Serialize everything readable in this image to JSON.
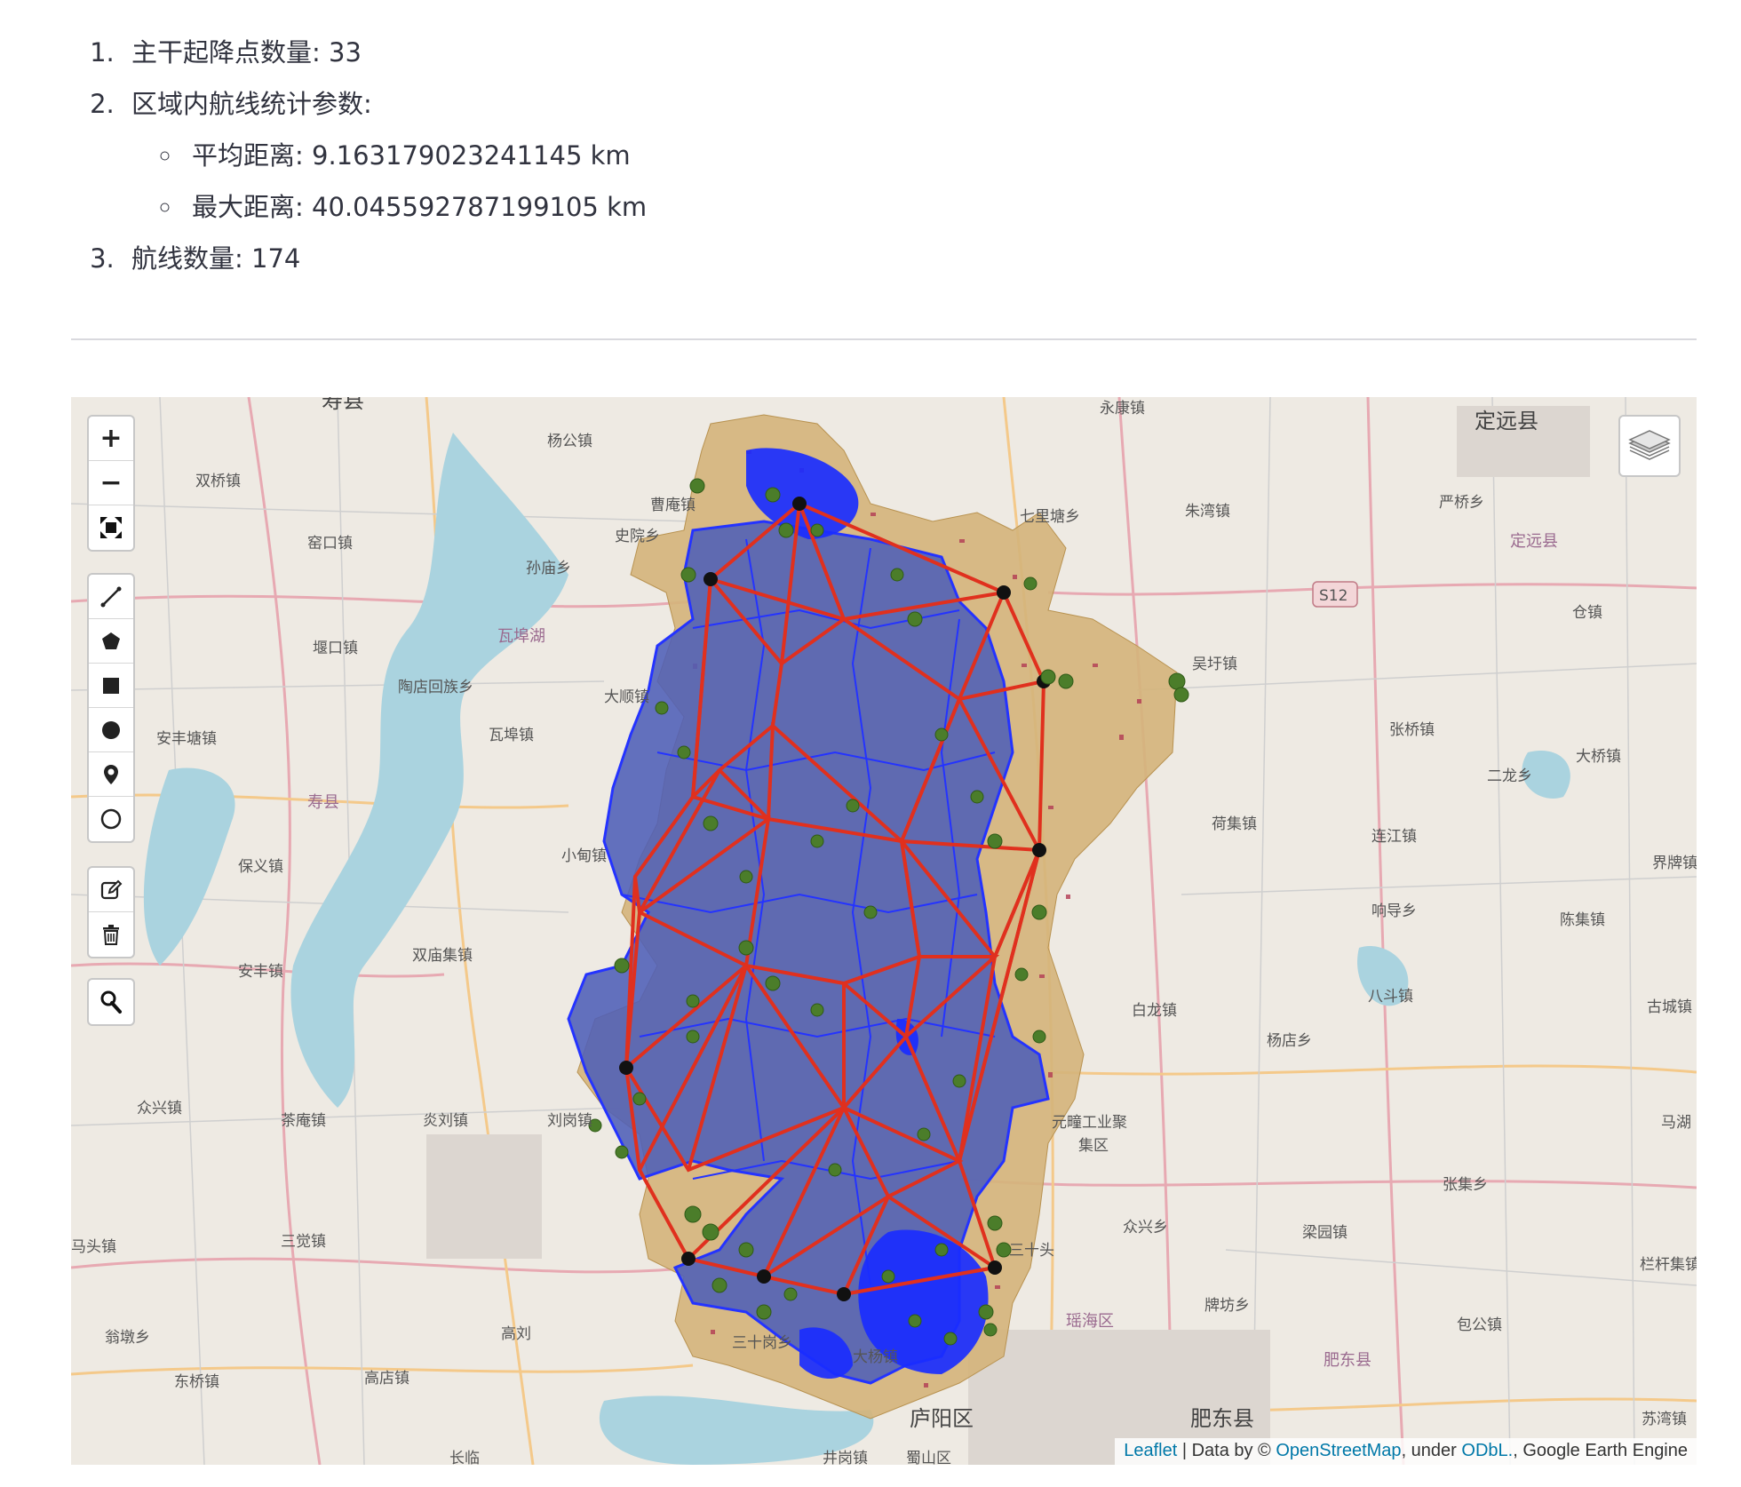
{
  "stats": {
    "item1": "主干起降点数量: 33",
    "item2": "区域内航线统计参数:",
    "avg_distance": "平均距离: 9.163179023241145 km",
    "max_distance": "最大距离: 40.045592787199105 km",
    "item3": "航线数量: 174"
  },
  "map": {
    "controls": {
      "zoom_in": "+",
      "zoom_out": "−"
    },
    "place_labels": {
      "shouxian_top": "寿县",
      "yanggong": "杨公镇",
      "yongkang": "永康镇",
      "dingyuan": "定远县",
      "shuangqiao": "双桥镇",
      "caoan": "曹庵镇",
      "qilitang": "七里塘乡",
      "zhuwan": "朱湾镇",
      "yanqiao": "严桥乡",
      "dingyuan_purple": "定远县",
      "shiyuan": "史院乡",
      "yaokou": "窑口镇",
      "sunmiao": "孙庙乡",
      "s12": "S12",
      "cangzhen": "仓镇",
      "wafuhu": "瓦埠湖",
      "yankou": "堰口镇",
      "wuyu": "吴圩镇",
      "taodian": "陶店回族乡",
      "dashun": "大顺镇",
      "wafu": "瓦埠镇",
      "zhangqiao": "张桥镇",
      "anfengtang": "安丰塘镇",
      "daqiao": "大桥镇",
      "erlong": "二龙乡",
      "shouxian_purple": "寿县",
      "hefji": "荷集镇",
      "lianjiang": "连江镇",
      "xiaodian": "小甸镇",
      "baoyi": "保义镇",
      "jiepai": "界牌镇",
      "xiangdao": "响导乡",
      "chenji": "陈集镇",
      "shuangmiao": "双庙集镇",
      "anfeng": "安丰镇",
      "badou": "八斗镇",
      "gucheng": "古城镇",
      "bailong": "白龙镇",
      "yangdian": "杨店乡",
      "zhongxing": "众兴镇",
      "chaan": "茶庵镇",
      "yanliu": "炎刘镇",
      "liugang": "刘岗镇",
      "yuanchuang1": "元疃工业聚",
      "yuanchuang2": "集区",
      "mahu": "马湖",
      "zhangji": "张集乡",
      "zhongxing2": "众兴乡",
      "liangyuan": "梁园镇",
      "matou": "马头镇",
      "sanjue": "三觉镇",
      "sanshitou": "三十头",
      "langanji": "栏杆集镇",
      "paifang": "牌坊乡",
      "yaohai": "瑶海区",
      "wengdun": "翁墩乡",
      "gaoliu": "高刘",
      "baogong": "包公镇",
      "sanshigang": "三十岗乡",
      "feidong_purple": "肥东县",
      "dayang": "大杨镇",
      "dongqiao": "东桥镇",
      "gaodian": "高店镇",
      "luyang": "庐阳区",
      "feidong": "肥东县",
      "sujiang": "苏湾镇",
      "changlin": "长临",
      "jinggang": "井岗镇",
      "shushan": "蜀山区"
    },
    "attribution": {
      "leaflet": "Leaflet",
      "sep1": " | Data by © ",
      "osm": "OpenStreetMap",
      "sep2": ", under ",
      "odbl": "ODbL.",
      "tail": ", Google Earth Engine"
    },
    "colors": {
      "region_fill": "#d4b47a",
      "voronoi_fill": "#4e5fb7",
      "voronoi_stroke": "#2433ff",
      "route": "#e0301e",
      "landing_point": "#4b7d2a",
      "water": "#aad3df"
    }
  }
}
